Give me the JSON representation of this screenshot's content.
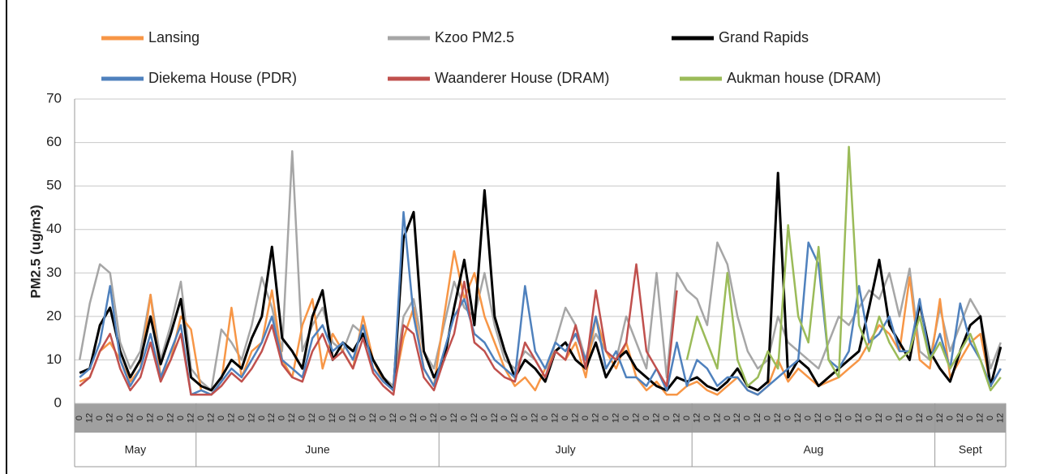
{
  "chart_data": {
    "type": "line",
    "y_label": "PM2.5 (ug/m3)",
    "ylim": [
      0,
      70
    ],
    "yticks": [
      0,
      10,
      20,
      30,
      40,
      50,
      60,
      70
    ],
    "grid": true,
    "categories": [
      "0",
      "12",
      "0",
      "12",
      "0",
      "12",
      "0",
      "12",
      "0",
      "12",
      "0",
      "12",
      "0",
      "12",
      "0",
      "12",
      "0",
      "12",
      "0",
      "12",
      "0",
      "12",
      "0",
      "12",
      "0",
      "12",
      "0",
      "12",
      "0",
      "12",
      "0",
      "12",
      "0",
      "12",
      "0",
      "12",
      "0",
      "12",
      "0",
      "12",
      "0",
      "12",
      "0",
      "12",
      "0",
      "12",
      "0",
      "12",
      "0",
      "12",
      "0",
      "12",
      "0",
      "12",
      "0",
      "12",
      "0",
      "12",
      "0",
      "12",
      "0",
      "12",
      "0",
      "12",
      "0",
      "12",
      "0",
      "12",
      "0",
      "12",
      "0",
      "12",
      "0",
      "12",
      "0",
      "12",
      "0",
      "12",
      "0",
      "12",
      "0",
      "12",
      "0",
      "12",
      "0",
      "12",
      "0",
      "12",
      "0",
      "12",
      "0",
      "12"
    ],
    "x_groups": [
      {
        "label": "May",
        "size": 12
      },
      {
        "label": "June",
        "size": 24
      },
      {
        "label": "July",
        "size": 25
      },
      {
        "label": "Aug",
        "size": 24
      },
      {
        "label": "Sept",
        "size": 7
      }
    ],
    "series": [
      {
        "name": "Lansing",
        "color": "#f79646",
        "values": [
          5,
          6,
          12,
          14,
          10,
          5,
          8,
          25,
          6,
          10,
          20,
          17,
          3,
          2,
          5,
          22,
          6,
          12,
          14,
          26,
          10,
          6,
          18,
          24,
          8,
          16,
          12,
          8,
          20,
          10,
          5,
          3,
          15,
          22,
          8,
          4,
          20,
          35,
          24,
          30,
          20,
          14,
          8,
          4,
          6,
          3,
          8,
          12,
          10,
          14,
          6,
          20,
          12,
          8,
          14,
          6,
          3,
          5,
          2,
          2,
          4,
          5,
          3,
          2,
          4,
          6,
          3,
          2,
          4,
          10,
          5,
          8,
          6,
          4,
          5,
          6,
          8,
          10,
          14,
          18,
          16,
          12,
          29,
          10,
          8,
          24,
          6,
          10,
          14,
          16,
          4,
          8
        ]
      },
      {
        "name": "Kzoo PM2.5",
        "color": "#a6a6a6",
        "values": [
          10,
          23,
          32,
          30,
          14,
          8,
          12,
          25,
          10,
          18,
          28,
          8,
          5,
          3,
          17,
          14,
          10,
          18,
          29,
          22,
          12,
          58,
          12,
          18,
          22,
          14,
          12,
          18,
          16,
          10,
          6,
          4,
          20,
          24,
          12,
          8,
          18,
          28,
          22,
          20,
          30,
          18,
          10,
          8,
          12,
          10,
          6,
          14,
          22,
          18,
          10,
          16,
          12,
          10,
          20,
          14,
          8,
          30,
          6,
          30,
          26,
          24,
          18,
          37,
          32,
          20,
          12,
          8,
          10,
          20,
          14,
          12,
          10,
          8,
          14,
          20,
          18,
          22,
          26,
          24,
          30,
          20,
          31,
          12,
          10,
          22,
          12,
          18,
          24,
          20,
          8,
          14
        ]
      },
      {
        "name": "Grand Rapids",
        "color": "#000000",
        "values": [
          7,
          8,
          18,
          22,
          12,
          6,
          10,
          20,
          9,
          16,
          24,
          6,
          4,
          3,
          6,
          10,
          8,
          15,
          20,
          36,
          15,
          12,
          8,
          20,
          26,
          10,
          14,
          12,
          16,
          10,
          6,
          3,
          38,
          44,
          12,
          6,
          10,
          22,
          33,
          18,
          49,
          20,
          12,
          6,
          10,
          8,
          5,
          12,
          14,
          10,
          8,
          14,
          6,
          10,
          12,
          8,
          6,
          4,
          3,
          6,
          5,
          6,
          4,
          3,
          5,
          8,
          4,
          3,
          5,
          53,
          6,
          10,
          8,
          4,
          6,
          8,
          10,
          12,
          22,
          33,
          18,
          14,
          10,
          23,
          12,
          8,
          5,
          12,
          18,
          20,
          4,
          13
        ]
      },
      {
        "name": "Diekema House (PDR)",
        "color": "#4f81bd",
        "values": [
          6,
          8,
          14,
          27,
          10,
          4,
          8,
          16,
          6,
          12,
          18,
          2,
          3,
          2,
          5,
          8,
          6,
          10,
          14,
          20,
          10,
          8,
          6,
          15,
          18,
          12,
          14,
          10,
          18,
          8,
          5,
          3,
          44,
          20,
          8,
          4,
          12,
          20,
          24,
          16,
          14,
          10,
          8,
          6,
          27,
          12,
          8,
          14,
          12,
          16,
          10,
          20,
          8,
          12,
          6,
          6,
          4,
          8,
          3,
          14,
          4,
          10,
          8,
          4,
          6,
          6,
          3,
          2,
          4,
          6,
          8,
          10,
          37,
          32,
          10,
          8,
          12,
          27,
          14,
          16,
          20,
          12,
          12,
          24,
          10,
          16,
          8,
          23,
          14,
          10,
          4,
          8
        ]
      },
      {
        "name": "Waanderer House (DRAM)",
        "color": "#c0504d",
        "values": [
          4,
          6,
          12,
          16,
          8,
          3,
          6,
          14,
          5,
          10,
          16,
          2,
          2,
          2,
          4,
          7,
          5,
          8,
          12,
          18,
          9,
          6,
          5,
          12,
          16,
          10,
          12,
          8,
          15,
          7,
          4,
          2,
          18,
          16,
          6,
          3,
          10,
          16,
          28,
          14,
          12,
          8,
          6,
          5,
          14,
          10,
          6,
          12,
          10,
          18,
          8,
          26,
          12,
          10,
          14,
          32,
          12,
          8,
          4,
          26,
          null,
          null,
          null,
          null,
          null,
          null,
          null,
          null,
          null,
          null,
          null,
          null,
          null,
          null,
          null,
          null,
          null,
          null,
          null,
          null,
          null,
          null,
          null,
          null,
          null,
          null,
          null,
          null,
          null,
          null,
          null,
          null
        ]
      },
      {
        "name": "Aukman house (DRAM)",
        "color": "#9bbb59",
        "values": [
          null,
          null,
          null,
          null,
          null,
          null,
          null,
          null,
          null,
          null,
          null,
          null,
          null,
          null,
          null,
          null,
          null,
          null,
          null,
          null,
          null,
          null,
          null,
          null,
          null,
          null,
          null,
          null,
          null,
          null,
          null,
          null,
          null,
          null,
          null,
          null,
          null,
          null,
          null,
          null,
          null,
          null,
          null,
          null,
          null,
          null,
          null,
          null,
          null,
          null,
          null,
          null,
          null,
          null,
          null,
          null,
          null,
          null,
          null,
          null,
          10,
          20,
          14,
          8,
          30,
          10,
          4,
          6,
          12,
          8,
          41,
          20,
          14,
          36,
          10,
          6,
          59,
          18,
          12,
          20,
          14,
          10,
          12,
          20,
          10,
          14,
          8,
          12,
          16,
          10,
          3,
          6
        ]
      }
    ]
  }
}
